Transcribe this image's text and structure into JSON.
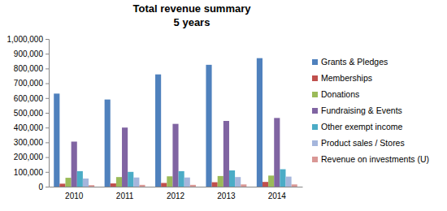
{
  "chart_data": {
    "type": "bar",
    "title": "Total revenue summary",
    "subtitle": "5 years",
    "categories": [
      "2010",
      "2011",
      "2012",
      "2013",
      "2014"
    ],
    "series": [
      {
        "name": "Grants & Pledges",
        "color": "#4f81bd",
        "values": [
          630000,
          590000,
          760000,
          825000,
          870000
        ]
      },
      {
        "name": "Memberships",
        "color": "#c0504d",
        "values": [
          20000,
          22000,
          25000,
          30000,
          32000
        ]
      },
      {
        "name": "Donations",
        "color": "#9bbb59",
        "values": [
          60000,
          65000,
          70000,
          72000,
          75000
        ]
      },
      {
        "name": "Fundraising & Events",
        "color": "#8064a2",
        "values": [
          305000,
          400000,
          425000,
          445000,
          465000
        ]
      },
      {
        "name": "Other exempt income",
        "color": "#4bacc6",
        "values": [
          105000,
          100000,
          105000,
          110000,
          118000
        ]
      },
      {
        "name": "Product sales / Stores",
        "color": "#a5b6dc",
        "values": [
          55000,
          62000,
          62000,
          65000,
          68000
        ]
      },
      {
        "name": "Revenue on investments (U)",
        "color": "#d99795",
        "values": [
          10000,
          12000,
          12000,
          15000,
          15000
        ]
      }
    ],
    "ylim": [
      0,
      1000000
    ],
    "yticks": [
      0,
      {
        "value": 100000,
        "label": "100,000"
      },
      {
        "value": 200000,
        "label": "200,000"
      },
      {
        "value": 300000,
        "label": "300,000"
      },
      {
        "value": 400000,
        "label": "400,000"
      },
      {
        "value": 500000,
        "label": "500,000"
      },
      {
        "value": 600000,
        "label": "600,000"
      },
      {
        "value": 700000,
        "label": "700,000"
      },
      {
        "value": 800000,
        "label": "800,000"
      },
      {
        "value": 900000,
        "label": "900,000"
      },
      {
        "value": 1000000,
        "label": "1,000,000"
      }
    ],
    "grid": false,
    "legend": "right"
  }
}
